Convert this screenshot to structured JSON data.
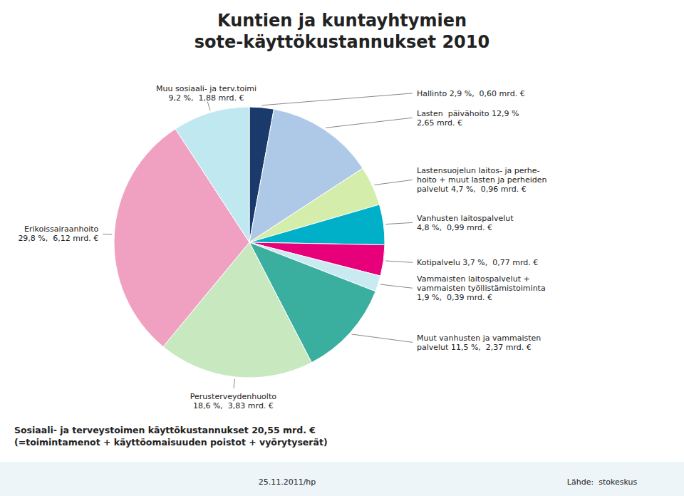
{
  "chart_data": {
    "type": "pie",
    "title": "Kuntien ja kuntayhtymien\nsote-käyttökustannukset 2010",
    "subtitle": "Sosiaali- ja terveystoimen käyttökustannukset 20,55 mrd. €\n(=toimintamenot + käyttöomaisuuden poistot + vyörytyserät)",
    "annotations": [
      "25.11.2011/hp",
      "Lähde:  stokeskus"
    ],
    "categories": [
      "Hallinto 2,9 %,  0,60 mrd. €",
      "Lasten  päivähoito 12,9 %\n2,65 mrd. €",
      "Lastensuojelun laitos- ja perhe-\nhoito + muut lasten ja perheiden\npalvelut 4,7 %,  0,96 mrd. €",
      "Vanhusten laitospalvelut\n4,8 %,  0,99 mrd. €",
      "Kotipalvelu 3,7 %,  0,77 mrd. €",
      "Vammaisten laitospalvelut +\nvammaisten työllistämistoiminta\n1,9 %,  0,39 mrd. €",
      "Muut vanhusten ja vammaisten\npalvelut 11,5 %,  2,37 mrd. €",
      "Perusterveydenhuolto\n18,6 %,  3,83 mrd. €",
      "Erikoissairaanhoito\n29,8 %,  6,12 mrd. €",
      "Muu sosiaali- ja terv.toimi\n9,2 %,  1,88 mrd. €"
    ],
    "values": [
      2.9,
      12.9,
      4.7,
      4.8,
      3.7,
      1.9,
      11.5,
      18.6,
      29.8,
      9.2
    ],
    "colors": [
      "#1a3a6b",
      "#aec9e8",
      "#d4edaa",
      "#00b0c8",
      "#e8007a",
      "#c8eaf0",
      "#3aafa0",
      "#c8e8c0",
      "#f0a0c0",
      "#c0e8f0"
    ]
  }
}
